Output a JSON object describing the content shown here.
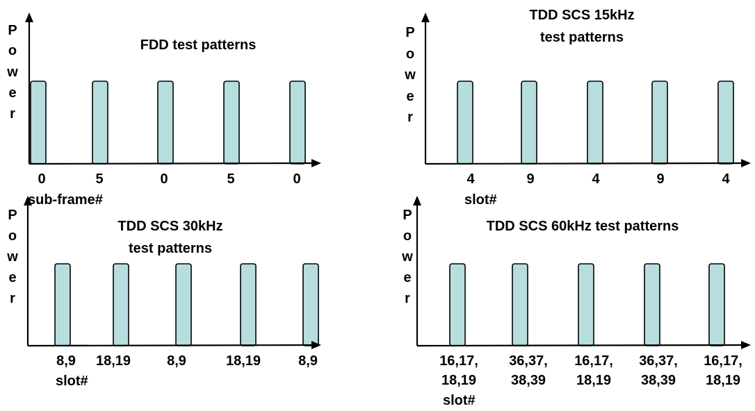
{
  "colors": {
    "bar_fill": "#b7dede",
    "bar_stroke": "#000000",
    "axis": "#000000",
    "text": "#000000"
  },
  "y_axis_label_letters": [
    "P",
    "o",
    "w",
    "e",
    "r"
  ],
  "panels": [
    {
      "title_lines": [
        "FDD test patterns"
      ],
      "xlabel": "sub-frame#",
      "ticks": [
        [
          "0"
        ],
        [
          "5"
        ],
        [
          "0"
        ],
        [
          "5"
        ],
        [
          "0"
        ]
      ]
    },
    {
      "title_lines": [
        "TDD SCS 15kHz",
        "test patterns"
      ],
      "xlabel": "slot#",
      "ticks": [
        [
          "4"
        ],
        [
          "9"
        ],
        [
          "4"
        ],
        [
          "9"
        ],
        [
          "4"
        ]
      ]
    },
    {
      "title_lines": [
        "TDD SCS 30kHz",
        "test patterns"
      ],
      "xlabel": "slot#",
      "ticks": [
        [
          "8,9"
        ],
        [
          "18,19"
        ],
        [
          "8,9"
        ],
        [
          "18,19"
        ],
        [
          "8,9"
        ]
      ]
    },
    {
      "title_lines": [
        "TDD SCS 60kHz test patterns"
      ],
      "xlabel": "slot#",
      "ticks": [
        [
          "16,17,",
          "18,19"
        ],
        [
          "36,37,",
          "38,39"
        ],
        [
          "16,17,",
          "18,19"
        ],
        [
          "36,37,",
          "38,39"
        ],
        [
          "16,17,",
          "18,19"
        ]
      ]
    }
  ]
}
